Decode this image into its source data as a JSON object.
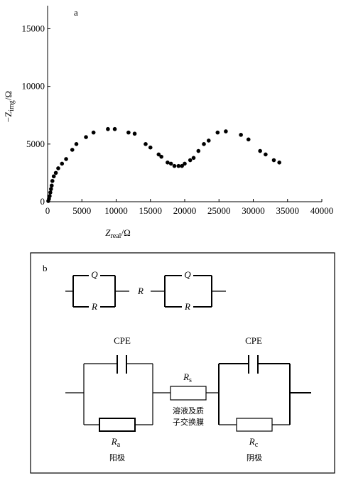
{
  "chart_data": {
    "type": "scatter",
    "annotation": "a",
    "xlabel": {
      "main": "Z",
      "sub": "real",
      "unit": "/Ω"
    },
    "ylabel": {
      "main": "−Z",
      "sub": "img",
      "unit": "/Ω"
    },
    "xlim": [
      0,
      40000
    ],
    "ylim": [
      0,
      17000
    ],
    "xticks": [
      0,
      5000,
      10000,
      15000,
      20000,
      25000,
      30000,
      35000,
      40000
    ],
    "yticks": [
      0,
      5000,
      10000,
      15000
    ],
    "color": "#000000",
    "x": [
      100,
      200,
      300,
      400,
      500,
      600,
      700,
      900,
      1200,
      1550,
      2100,
      2700,
      3600,
      4200,
      5600,
      6700,
      8800,
      9800,
      11800,
      12700,
      14300,
      15000,
      16200,
      16600,
      17500,
      18000,
      18500,
      19100,
      19600,
      20000,
      20800,
      21300,
      22000,
      22800,
      23500,
      24800,
      26000,
      28200,
      29300,
      31000,
      31800,
      33000,
      33800
    ],
    "values": [
      60,
      250,
      490,
      800,
      1100,
      1400,
      1800,
      2200,
      2500,
      2900,
      3300,
      3700,
      4500,
      5000,
      5600,
      6000,
      6300,
      6300,
      6000,
      5900,
      5000,
      4700,
      4100,
      3900,
      3400,
      3300,
      3100,
      3100,
      3100,
      3300,
      3600,
      3800,
      4400,
      5000,
      5300,
      6000,
      6100,
      5800,
      5400,
      4400,
      4100,
      3600,
      3400
    ]
  },
  "diagram": {
    "label": "b",
    "top": {
      "q1": "Q",
      "r1": "R",
      "r": "R",
      "q2": "Q",
      "r2": "R"
    },
    "bottom": {
      "cpe1": "CPE",
      "cpe2": "CPE",
      "rs": {
        "main": "R",
        "sub": "s"
      },
      "rs_note": [
        "溶液及质",
        "子交换膜"
      ],
      "ra": {
        "main": "R",
        "sub": "a"
      },
      "ra_note": "阳极",
      "rc": {
        "main": "R",
        "sub": "c"
      },
      "rc_note": "阴极"
    }
  }
}
